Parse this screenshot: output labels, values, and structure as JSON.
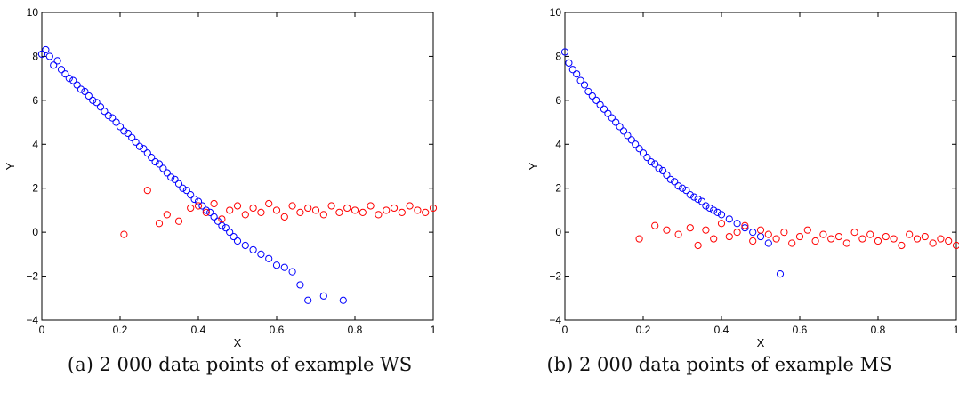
{
  "chart_data": [
    {
      "type": "scatter",
      "caption": "(a) 2 000 data points of example WS",
      "xlabel": "X",
      "ylabel": "Y",
      "xlim": [
        0,
        1
      ],
      "ylim": [
        -4,
        10
      ],
      "xticks": [
        "0",
        "0.2",
        "0.4",
        "0.6",
        "0.8",
        "1"
      ],
      "yticks": [
        "−4",
        "−2",
        "0",
        "2",
        "4",
        "6",
        "8",
        "10"
      ],
      "grid": false,
      "series": [
        {
          "color": "#0000ff",
          "marker": "circle-open",
          "x": [
            0.0,
            0.01,
            0.02,
            0.03,
            0.04,
            0.05,
            0.06,
            0.07,
            0.08,
            0.09,
            0.1,
            0.11,
            0.12,
            0.13,
            0.14,
            0.15,
            0.16,
            0.17,
            0.18,
            0.19,
            0.2,
            0.21,
            0.22,
            0.23,
            0.24,
            0.25,
            0.26,
            0.27,
            0.28,
            0.29,
            0.3,
            0.31,
            0.32,
            0.33,
            0.34,
            0.35,
            0.36,
            0.37,
            0.38,
            0.39,
            0.4,
            0.41,
            0.42,
            0.43,
            0.44,
            0.45,
            0.46,
            0.47,
            0.48,
            0.49,
            0.5,
            0.52,
            0.54,
            0.56,
            0.58,
            0.6,
            0.62,
            0.64,
            0.66,
            0.68,
            0.72,
            0.77
          ],
          "y": [
            8.1,
            8.3,
            8.0,
            7.6,
            7.8,
            7.4,
            7.2,
            7.0,
            6.9,
            6.7,
            6.5,
            6.4,
            6.2,
            6.0,
            5.9,
            5.7,
            5.5,
            5.3,
            5.2,
            5.0,
            4.8,
            4.6,
            4.5,
            4.3,
            4.1,
            3.9,
            3.8,
            3.6,
            3.4,
            3.2,
            3.1,
            2.9,
            2.7,
            2.5,
            2.4,
            2.2,
            2.0,
            1.9,
            1.7,
            1.5,
            1.4,
            1.2,
            1.0,
            0.9,
            0.7,
            0.5,
            0.3,
            0.2,
            0.0,
            -0.2,
            -0.4,
            -0.6,
            -0.8,
            -1.0,
            -1.2,
            -1.5,
            -1.6,
            -1.8,
            -2.4,
            -3.1,
            -2.9,
            -3.1
          ]
        },
        {
          "color": "#ff0000",
          "marker": "circle-open",
          "x": [
            0.21,
            0.27,
            0.3,
            0.32,
            0.35,
            0.38,
            0.4,
            0.42,
            0.44,
            0.46,
            0.48,
            0.5,
            0.52,
            0.54,
            0.56,
            0.58,
            0.6,
            0.62,
            0.64,
            0.66,
            0.68,
            0.7,
            0.72,
            0.74,
            0.76,
            0.78,
            0.8,
            0.82,
            0.84,
            0.86,
            0.88,
            0.9,
            0.92,
            0.94,
            0.96,
            0.98,
            1.0
          ],
          "y": [
            -0.1,
            1.9,
            0.4,
            0.8,
            0.5,
            1.1,
            1.2,
            0.9,
            1.3,
            0.6,
            1.0,
            1.2,
            0.8,
            1.1,
            0.9,
            1.3,
            1.0,
            0.7,
            1.2,
            0.9,
            1.1,
            1.0,
            0.8,
            1.2,
            0.9,
            1.1,
            1.0,
            0.9,
            1.2,
            0.8,
            1.0,
            1.1,
            0.9,
            1.2,
            1.0,
            0.9,
            1.1
          ]
        }
      ]
    },
    {
      "type": "scatter",
      "caption": "(b) 2 000 data points of example MS",
      "xlabel": "X",
      "ylabel": "Y",
      "xlim": [
        0,
        1
      ],
      "ylim": [
        -4,
        10
      ],
      "xticks": [
        "0",
        "0.2",
        "0.4",
        "0.6",
        "0.8",
        "1"
      ],
      "yticks": [
        "−4",
        "−2",
        "0",
        "2",
        "4",
        "6",
        "8",
        "10"
      ],
      "grid": false,
      "series": [
        {
          "color": "#0000ff",
          "marker": "circle-open",
          "x": [
            0.0,
            0.01,
            0.02,
            0.03,
            0.04,
            0.05,
            0.06,
            0.07,
            0.08,
            0.09,
            0.1,
            0.11,
            0.12,
            0.13,
            0.14,
            0.15,
            0.16,
            0.17,
            0.18,
            0.19,
            0.2,
            0.21,
            0.22,
            0.23,
            0.24,
            0.25,
            0.26,
            0.27,
            0.28,
            0.29,
            0.3,
            0.31,
            0.32,
            0.33,
            0.34,
            0.35,
            0.36,
            0.37,
            0.38,
            0.39,
            0.4,
            0.42,
            0.44,
            0.46,
            0.48,
            0.5,
            0.52,
            0.55
          ],
          "y": [
            8.2,
            7.7,
            7.4,
            7.2,
            6.9,
            6.7,
            6.4,
            6.2,
            6.0,
            5.8,
            5.6,
            5.4,
            5.2,
            5.0,
            4.8,
            4.6,
            4.4,
            4.2,
            4.0,
            3.8,
            3.6,
            3.4,
            3.2,
            3.1,
            2.9,
            2.8,
            2.6,
            2.4,
            2.3,
            2.1,
            2.0,
            1.9,
            1.7,
            1.6,
            1.5,
            1.4,
            1.2,
            1.1,
            1.0,
            0.9,
            0.8,
            0.6,
            0.4,
            0.2,
            0.0,
            -0.2,
            -0.5,
            -1.9
          ]
        },
        {
          "color": "#ff0000",
          "marker": "circle-open",
          "x": [
            0.19,
            0.23,
            0.26,
            0.29,
            0.32,
            0.34,
            0.36,
            0.38,
            0.4,
            0.42,
            0.44,
            0.46,
            0.48,
            0.5,
            0.52,
            0.54,
            0.56,
            0.58,
            0.6,
            0.62,
            0.64,
            0.66,
            0.68,
            0.7,
            0.72,
            0.74,
            0.76,
            0.78,
            0.8,
            0.82,
            0.84,
            0.86,
            0.88,
            0.9,
            0.92,
            0.94,
            0.96,
            0.98,
            1.0
          ],
          "y": [
            -0.3,
            0.3,
            0.1,
            -0.1,
            0.2,
            -0.6,
            0.1,
            -0.3,
            0.4,
            -0.2,
            0.0,
            0.3,
            -0.4,
            0.1,
            -0.1,
            -0.3,
            0.0,
            -0.5,
            -0.2,
            0.1,
            -0.4,
            -0.1,
            -0.3,
            -0.2,
            -0.5,
            0.0,
            -0.3,
            -0.1,
            -0.4,
            -0.2,
            -0.3,
            -0.6,
            -0.1,
            -0.3,
            -0.2,
            -0.5,
            -0.3,
            -0.4,
            -0.6
          ]
        }
      ]
    }
  ]
}
